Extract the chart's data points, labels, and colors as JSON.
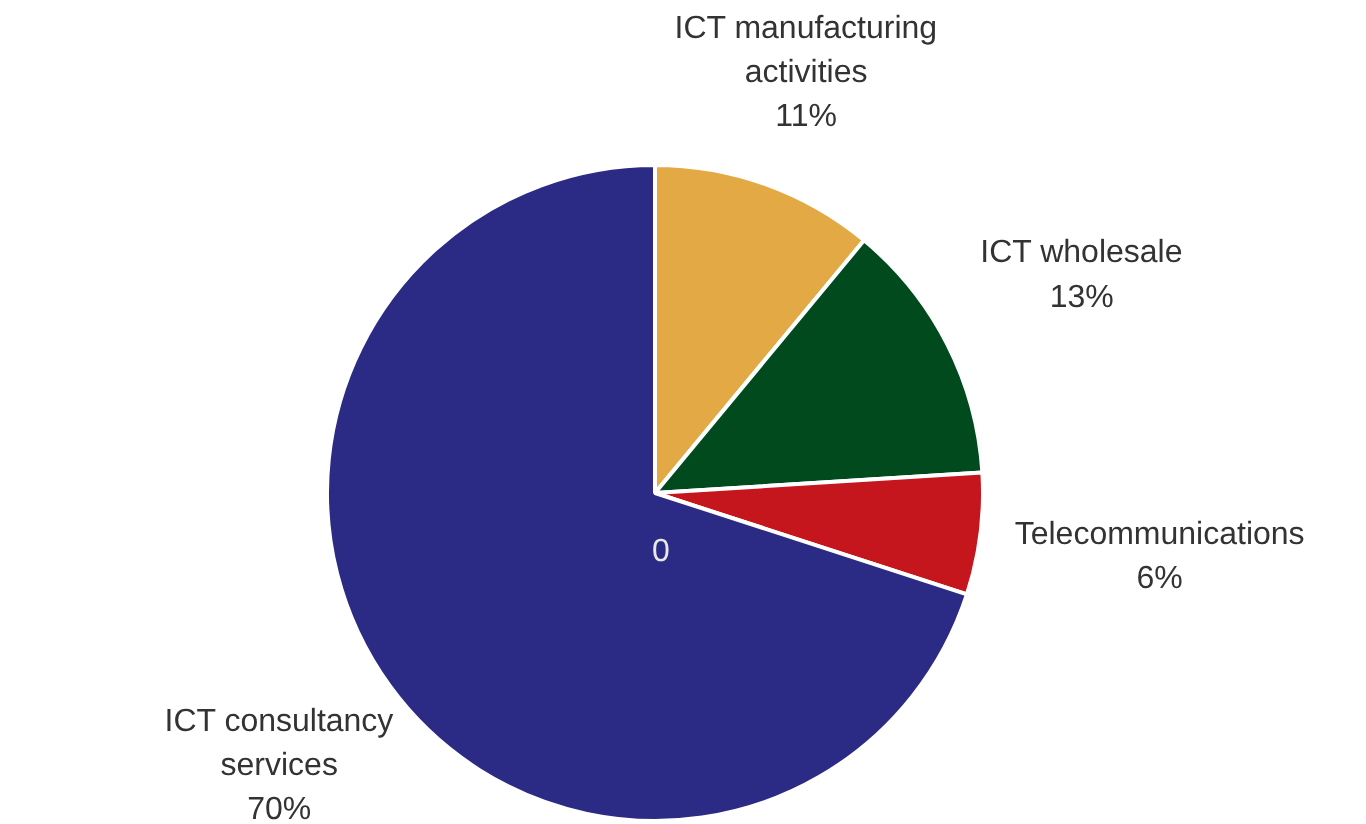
{
  "chart_data": {
    "type": "pie",
    "categories": [
      "ICT manufacturing activities",
      "ICT wholesale",
      "Telecommunications",
      "ICT consultancy services"
    ],
    "values": [
      11,
      13,
      6,
      70
    ],
    "colors": [
      "#e3a944",
      "#004a1e",
      "#c4161c",
      "#2b2a84"
    ],
    "value_labels": [
      "11%",
      "13%",
      "6%",
      "70%"
    ],
    "annotations": [
      "0"
    ]
  }
}
